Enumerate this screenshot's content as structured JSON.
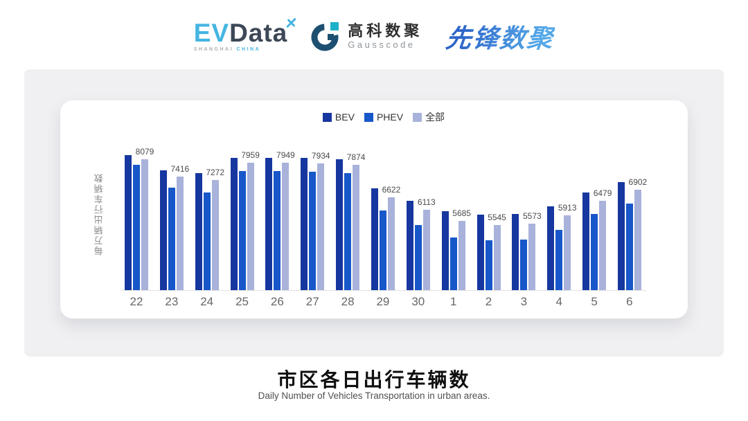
{
  "header": {
    "evdata": {
      "ev": "EV",
      "data": "Data",
      "sub_left": "SHANGHAI",
      "sub_right": "CHINA"
    },
    "gausscode": {
      "cn_name": "高科数聚",
      "en_name": "Gausscode"
    },
    "pioneer": {
      "name": "先锋数聚"
    }
  },
  "chart_data": {
    "type": "bar",
    "title": "市区各日出行车辆数",
    "subtitle": "Daily Number of Vehicles Transportation in urban areas.",
    "ylabel": "每万辆出行车辆数",
    "xlabel": "",
    "categories": [
      "22",
      "23",
      "24",
      "25",
      "26",
      "27",
      "28",
      "29",
      "30",
      "1",
      "2",
      "3",
      "4",
      "5",
      "6"
    ],
    "series": [
      {
        "name": "BEV",
        "color": "#16379f",
        "values": [
          8260,
          7670,
          7560,
          8150,
          8140,
          8150,
          8080,
          6950,
          6480,
          6060,
          5930,
          5950,
          6270,
          6800,
          7200
        ]
      },
      {
        "name": "PHEV",
        "color": "#1857c9",
        "values": [
          7870,
          6990,
          6790,
          7640,
          7630,
          7600,
          7560,
          6110,
          5520,
          5050,
          4930,
          4960,
          5340,
          5950,
          6370
        ]
      },
      {
        "name": "全部",
        "color": "#a8b2da",
        "labels_shown": true,
        "values": [
          8079,
          7416,
          7272,
          7959,
          7949,
          7934,
          7874,
          6622,
          6113,
          5685,
          5545,
          5573,
          5913,
          6479,
          6902
        ]
      }
    ],
    "ylim": [
      3000,
      8900
    ],
    "grid": false,
    "y_axis_ticks_visible": false,
    "legend_position": "top"
  },
  "footer": {
    "title": "市区各日出行车辆数",
    "subtitle": "Daily Number of Vehicles Transportation in urban areas."
  },
  "colors": {
    "panel_bg": "#f0f0f2",
    "card_bg": "#ffffff",
    "axis_line": "#e2e2e2",
    "x_label": "#666666",
    "data_label": "#4a4a4a"
  }
}
